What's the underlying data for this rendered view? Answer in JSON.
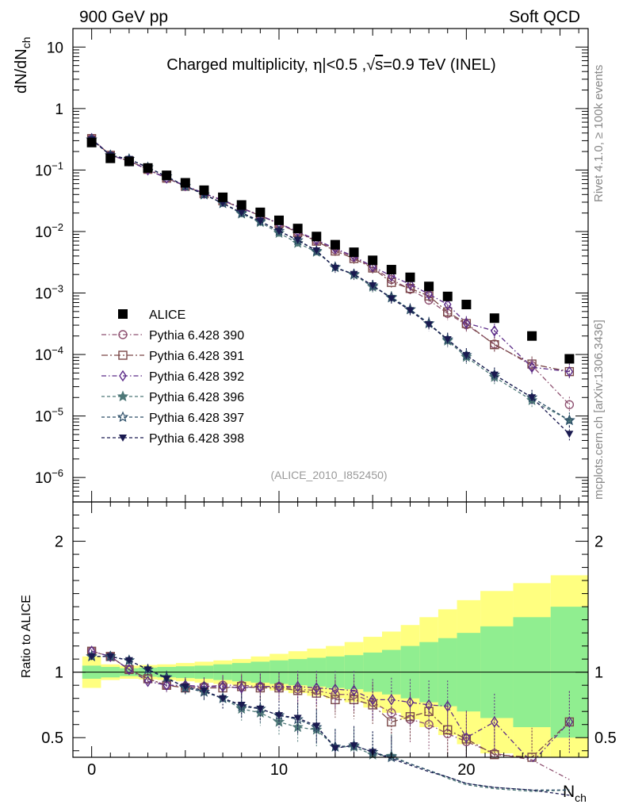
{
  "header": {
    "left": "900 GeV pp",
    "right": "Soft QCD"
  },
  "side_text": {
    "rivet": "Rivet 4.1.0, ≥ 100k events",
    "mcplots": "mcplots.cern.ch [arXiv:1306.3436]"
  },
  "chart_data": {
    "type": "scatter",
    "title_parts": {
      "a": "Charged multiplicity, ",
      "eta": "η",
      "b": "|<0.5 ,",
      "sqrt": "√",
      "s": "s",
      "c": "=0.9 TeV (INEL)"
    },
    "analysis_id": "(ALICE_2010_I852450)",
    "ylabel_main": {
      "base": "dN/dN",
      "sub": "ch"
    },
    "ylabel_ratio": "Ratio to ALICE",
    "xlabel": {
      "base": "N",
      "sub": "ch"
    },
    "xlim": [
      -1,
      26.5
    ],
    "ylim_main": [
      4e-07,
      20
    ],
    "ylim_ratio": [
      0.35,
      2.3
    ],
    "x_ticks": [
      "0",
      "10",
      "20"
    ],
    "y_ticks_main": [
      {
        "v": 1e-06,
        "m": "10",
        "e": "−6"
      },
      {
        "v": 1e-05,
        "m": "10",
        "e": "−5"
      },
      {
        "v": 0.0001,
        "m": "10",
        "e": "−4"
      },
      {
        "v": 0.001,
        "m": "10",
        "e": "−3"
      },
      {
        "v": 0.01,
        "m": "10",
        "e": "−2"
      },
      {
        "v": 0.1,
        "m": "10",
        "e": "−1"
      },
      {
        "v": 1,
        "m": "1",
        "e": ""
      },
      {
        "v": 10,
        "m": "10",
        "e": ""
      }
    ],
    "y_ticks_ratio": [
      "0.5",
      "1",
      "2"
    ],
    "data": {
      "name": "ALICE",
      "x": [
        0,
        1,
        2,
        3,
        4,
        5,
        6,
        7,
        8,
        9,
        10,
        11,
        12,
        13,
        14,
        15,
        16,
        17,
        18,
        19,
        20,
        21.5,
        23.5,
        25.5
      ],
      "y": [
        0.28,
        0.155,
        0.138,
        0.108,
        0.082,
        0.062,
        0.047,
        0.036,
        0.027,
        0.0205,
        0.0152,
        0.0112,
        0.0083,
        0.0061,
        0.0046,
        0.0034,
        0.0024,
        0.0018,
        0.00128,
        0.00088,
        0.00065,
        0.00039,
        0.0002,
        8.5e-05
      ],
      "band_green": [
        0.05,
        0.04,
        0.03,
        0.035,
        0.04,
        0.045,
        0.05,
        0.06,
        0.07,
        0.08,
        0.09,
        0.1,
        0.11,
        0.12,
        0.13,
        0.15,
        0.17,
        0.2,
        0.23,
        0.26,
        0.3,
        0.35,
        0.42,
        0.5
      ],
      "band_yellow": [
        0.12,
        0.06,
        0.05,
        0.055,
        0.06,
        0.07,
        0.08,
        0.09,
        0.1,
        0.12,
        0.14,
        0.16,
        0.18,
        0.2,
        0.23,
        0.27,
        0.31,
        0.36,
        0.42,
        0.48,
        0.55,
        0.62,
        0.68,
        0.74
      ]
    },
    "series": [
      {
        "name": "Pythia 6.428 390",
        "color": "#8e5070",
        "marker": "circle",
        "dash": "6,3,1.5,3",
        "ratio": [
          1.16,
          1.12,
          1.02,
          0.95,
          0.9,
          0.89,
          0.89,
          0.9,
          0.9,
          0.89,
          0.89,
          0.87,
          0.86,
          0.83,
          0.83,
          0.77,
          0.69,
          0.64,
          0.6,
          0.53,
          0.47,
          0.38,
          0.33,
          0.18
        ]
      },
      {
        "name": "Pythia 6.428 391",
        "color": "#7a4848",
        "marker": "square",
        "dash": "8,3,2,3",
        "ratio": [
          1.16,
          1.12,
          1.02,
          0.95,
          0.9,
          0.88,
          0.88,
          0.88,
          0.89,
          0.88,
          0.88,
          0.86,
          0.84,
          0.79,
          0.79,
          0.75,
          0.62,
          0.66,
          0.7,
          0.56,
          0.49,
          0.37,
          0.35,
          0.62
        ]
      },
      {
        "name": "Pythia 6.428 392",
        "color": "#5c2c88",
        "marker": "diamond",
        "dash": "6,3,1.5,3",
        "ratio": [
          1.16,
          1.12,
          1.02,
          0.93,
          0.9,
          0.9,
          0.89,
          0.89,
          0.88,
          0.89,
          0.89,
          0.89,
          0.88,
          0.87,
          0.86,
          0.79,
          0.79,
          0.77,
          0.75,
          0.74,
          0.5,
          0.62,
          0.31,
          0.62
        ]
      },
      {
        "name": "Pythia 6.428 396",
        "color": "#4e7878",
        "marker": "star",
        "dash": "4,3",
        "ratio": [
          1.12,
          1.12,
          1.09,
          1.02,
          0.96,
          0.88,
          0.85,
          0.8,
          0.72,
          0.69,
          0.62,
          0.58,
          0.56,
          0.43,
          0.43,
          0.37,
          0.36,
          0.3,
          0.25,
          0.19,
          0.14,
          0.11,
          0.09,
          0.1
        ]
      },
      {
        "name": "Pythia 6.428 397",
        "color": "#2c4e68",
        "marker": "star-open",
        "dash": "4,3",
        "ratio": [
          1.12,
          1.12,
          1.09,
          1.02,
          0.96,
          0.88,
          0.85,
          0.8,
          0.74,
          0.72,
          0.67,
          0.64,
          0.58,
          0.43,
          0.44,
          0.39,
          0.35,
          0.3,
          0.25,
          0.2,
          0.15,
          0.12,
          0.1,
          0.1
        ]
      },
      {
        "name": "Pythia 6.428 398",
        "color": "#1a1a50",
        "marker": "triangle-down",
        "dash": "4,3",
        "ratio": [
          1.12,
          1.12,
          1.09,
          1.02,
          0.95,
          0.89,
          0.86,
          0.8,
          0.75,
          0.72,
          0.67,
          0.65,
          0.59,
          0.42,
          0.44,
          0.39,
          0.34,
          0.29,
          0.24,
          0.2,
          0.15,
          0.12,
          0.1,
          0.06
        ]
      }
    ]
  }
}
